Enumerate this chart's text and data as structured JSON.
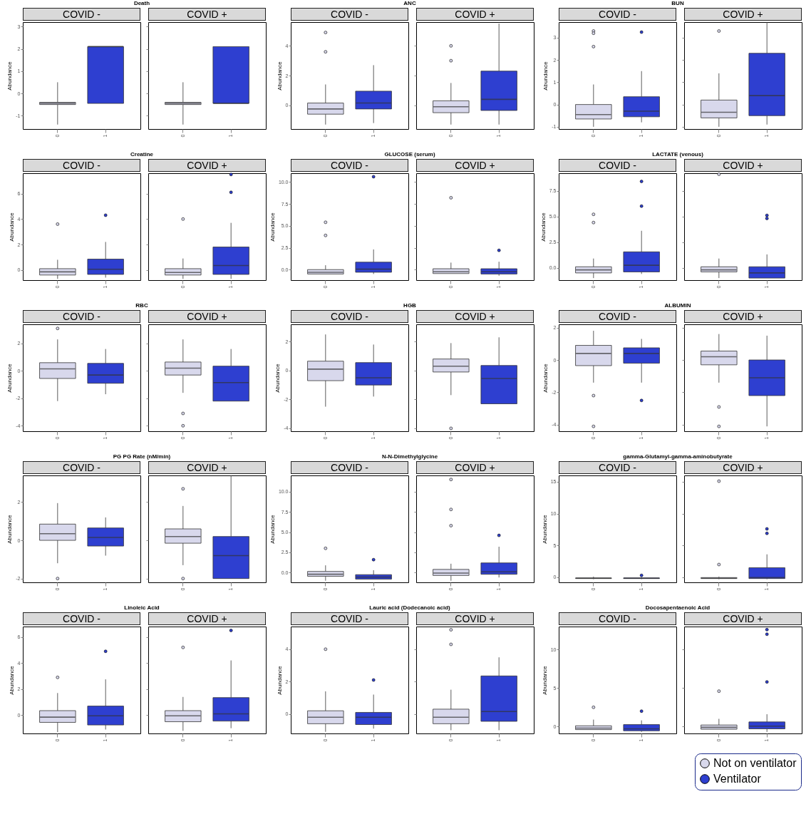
{
  "chart_data": [
    {
      "type": "box",
      "title": "Death",
      "subtitle": "COVID -",
      "ylabel": "Abundance",
      "categories": [
        "0",
        "1"
      ],
      "ylim": [
        -1.6,
        3.2
      ],
      "yticks": [
        -1,
        0,
        1,
        2,
        3
      ],
      "series": [
        {
          "color": "#d8d8ec",
          "boxes": [
            {
              "low": -1.4,
              "q1": -0.5,
              "median": -0.45,
              "q3": -0.4,
              "high": 0.5
            },
            null
          ]
        },
        {
          "color": "#2e3fd0",
          "boxes": [
            null,
            {
              "low": -0.45,
              "q1": -0.45,
              "median": 2.1,
              "q3": 2.1,
              "high": 2.1
            }
          ]
        }
      ]
    },
    {
      "type": "box",
      "subtitle": "COVID +",
      "categories": [
        "0",
        "1"
      ],
      "ylim": [
        -1.6,
        3.2
      ],
      "yticks": [
        {
          "value": -1,
          "label": null
        },
        {
          "value": 0,
          "label": null
        },
        {
          "value": 1,
          "label": null
        },
        {
          "value": 2,
          "label": null
        },
        {
          "value": 3,
          "label": null
        }
      ],
      "tick_labels": "x",
      "series": [
        {
          "color": "#d8d8ec",
          "boxes": [
            {
              "low": -1.4,
              "q1": -0.5,
              "median": -0.45,
              "q3": -0.4,
              "high": 0.5
            },
            null
          ]
        },
        {
          "color": "#2e3fd0",
          "boxes": [
            null,
            {
              "low": -0.45,
              "q1": -0.45,
              "median": -0.45,
              "q3": 2.1,
              "high": 2.1
            }
          ]
        }
      ]
    },
    {
      "type": "box",
      "title": "ANC",
      "subtitle": "COVID -",
      "ylabel": "Abundance",
      "categories": [
        "0",
        "1"
      ],
      "ylim": [
        -1.6,
        5.6
      ],
      "yticks": [
        0,
        2,
        4
      ],
      "series": [
        {
          "color": "#d8d8ec",
          "boxes": [
            {
              "low": -1.3,
              "q1": -0.6,
              "median": -0.25,
              "q3": 0.15,
              "high": 1.4,
              "outliers": [
                4.9,
                3.6
              ]
            },
            null
          ]
        },
        {
          "color": "#2e3fd0",
          "boxes": [
            null,
            {
              "low": -1.2,
              "q1": -0.25,
              "median": 0.15,
              "q3": 0.95,
              "high": 2.7
            }
          ]
        }
      ]
    },
    {
      "type": "box",
      "subtitle": "COVID +",
      "categories": [
        "0",
        "1"
      ],
      "ylim": [
        -1.6,
        5.6
      ],
      "yticks": [
        {
          "value": 0,
          "label": null
        },
        {
          "value": 2,
          "label": null
        },
        {
          "value": 4,
          "label": null
        }
      ],
      "tick_labels": "x",
      "series": [
        {
          "color": "#d8d8ec",
          "boxes": [
            {
              "low": -1.3,
              "q1": -0.5,
              "median": -0.1,
              "q3": 0.3,
              "high": 1.5,
              "outliers": [
                4.0,
                3.0
              ]
            },
            null
          ]
        },
        {
          "color": "#2e3fd0",
          "boxes": [
            null,
            {
              "low": -1.3,
              "q1": -0.35,
              "median": 0.4,
              "q3": 2.3,
              "high": 5.5
            }
          ]
        }
      ]
    },
    {
      "type": "box",
      "title": "BUN",
      "subtitle": "COVID -",
      "ylabel": "Abundance",
      "categories": [
        "0",
        "1"
      ],
      "ylim": [
        -1.1,
        3.7
      ],
      "yticks": [
        -1,
        0,
        1,
        2,
        3
      ],
      "series": [
        {
          "color": "#d8d8ec",
          "boxes": [
            {
              "low": -1,
              "q1": -0.65,
              "median": -0.45,
              "q3": 0,
              "high": 0.9,
              "outliers": [
                3.3,
                3.2,
                2.6
              ]
            },
            null
          ]
        },
        {
          "color": "#2e3fd0",
          "boxes": [
            null,
            {
              "low": -0.8,
              "q1": -0.55,
              "median": -0.3,
              "q3": 0.35,
              "high": 1.5,
              "outliers": [
                3.25
              ]
            }
          ]
        }
      ]
    },
    {
      "type": "box",
      "subtitle": "COVID +",
      "categories": [
        "0",
        "1"
      ],
      "ylim": [
        -1.1,
        3.7
      ],
      "yticks": [
        {
          "value": -1,
          "label": null
        },
        {
          "value": 0,
          "label": null
        },
        {
          "value": 1,
          "label": null
        },
        {
          "value": 2,
          "label": null
        },
        {
          "value": 3,
          "label": null
        }
      ],
      "tick_labels": "x",
      "series": [
        {
          "color": "#d8d8ec",
          "boxes": [
            {
              "low": -1,
              "q1": -0.6,
              "median": -0.35,
              "q3": 0.2,
              "high": 1.4,
              "outliers": [
                3.3
              ]
            },
            null
          ]
        },
        {
          "color": "#2e3fd0",
          "boxes": [
            null,
            {
              "low": -0.9,
              "q1": -0.5,
              "median": 0.4,
              "q3": 2.3,
              "high": 3.7
            }
          ]
        }
      ]
    },
    {
      "type": "box",
      "title": "Creatine",
      "subtitle": "COVID -",
      "ylabel": "Abundance",
      "categories": [
        "0",
        "1"
      ],
      "ylim": [
        -0.8,
        7.6
      ],
      "yticks": [
        0,
        2,
        4,
        6
      ],
      "series": [
        {
          "color": "#d8d8ec",
          "boxes": [
            {
              "low": -0.7,
              "q1": -0.4,
              "median": -0.15,
              "q3": 0.1,
              "high": 0.8,
              "outliers": [
                3.6
              ]
            },
            null
          ]
        },
        {
          "color": "#2e3fd0",
          "boxes": [
            null,
            {
              "low": -0.6,
              "q1": -0.35,
              "median": 0.05,
              "q3": 0.85,
              "high": 2.2,
              "outliers": [
                4.3
              ]
            }
          ]
        }
      ]
    },
    {
      "type": "box",
      "subtitle": "COVID +",
      "categories": [
        "0",
        "1"
      ],
      "ylim": [
        -0.8,
        7.6
      ],
      "yticks": [
        {
          "value": 0,
          "label": null
        },
        {
          "value": 2,
          "label": null
        },
        {
          "value": 4,
          "label": null
        },
        {
          "value": 6,
          "label": null
        }
      ],
      "tick_labels": "x",
      "series": [
        {
          "color": "#d8d8ec",
          "boxes": [
            {
              "low": -0.7,
              "q1": -0.4,
              "median": -0.2,
              "q3": 0.1,
              "high": 0.9,
              "outliers": [
                4.0
              ]
            },
            null
          ]
        },
        {
          "color": "#2e3fd0",
          "boxes": [
            null,
            {
              "low": -0.7,
              "q1": -0.35,
              "median": 0.35,
              "q3": 1.8,
              "high": 3.7,
              "outliers": [
                7.5,
                6.1
              ]
            }
          ]
        }
      ]
    },
    {
      "type": "box",
      "title": "GLUCOSE (serum)",
      "subtitle": "COVID -",
      "ylabel": "Abundance",
      "categories": [
        "0",
        "1"
      ],
      "ylim": [
        -1.2,
        11
      ],
      "yticks": [
        {
          "value": 0,
          "label": "0.0"
        },
        {
          "value": 2.5,
          "label": "2.5"
        },
        {
          "value": 5,
          "label": "5.0"
        },
        {
          "value": 7.5,
          "label": "7.5"
        },
        {
          "value": 10,
          "label": "10.0"
        }
      ],
      "series": [
        {
          "color": "#d8d8ec",
          "boxes": [
            {
              "low": -0.5,
              "q1": -0.5,
              "median": -0.3,
              "q3": 0,
              "high": 0.5,
              "outliers": [
                5.4,
                3.9
              ]
            },
            null
          ]
        },
        {
          "color": "#2e3fd0",
          "boxes": [
            null,
            {
              "low": -0.5,
              "q1": -0.3,
              "median": 0.05,
              "q3": 0.85,
              "high": 2.3,
              "outliers": [
                10.6
              ]
            }
          ]
        }
      ]
    },
    {
      "type": "box",
      "subtitle": "COVID +",
      "categories": [
        "0",
        "1"
      ],
      "ylim": [
        -1.2,
        11
      ],
      "yticks": [
        {
          "value": 0,
          "label": null
        },
        {
          "value": 2.5,
          "label": null
        },
        {
          "value": 5,
          "label": null
        },
        {
          "value": 7.5,
          "label": null
        },
        {
          "value": 10,
          "label": null
        }
      ],
      "tick_labels": "x",
      "series": [
        {
          "color": "#d8d8ec",
          "boxes": [
            {
              "low": -0.45,
              "q1": -0.45,
              "median": -0.25,
              "q3": 0.1,
              "high": 0.8,
              "outliers": [
                8.2
              ]
            },
            null
          ]
        },
        {
          "color": "#2e3fd0",
          "boxes": [
            null,
            {
              "low": -0.7,
              "q1": -0.5,
              "median": -0.25,
              "q3": 0.1,
              "high": 0.9,
              "outliers": [
                2.2
              ]
            }
          ]
        }
      ]
    },
    {
      "type": "box",
      "title": "LACTATE (venous)",
      "subtitle": "COVID -",
      "ylabel": "Abundance",
      "categories": [
        "0",
        "1"
      ],
      "ylim": [
        -1.2,
        9.2
      ],
      "yticks": [
        {
          "value": 0,
          "label": "0.0"
        },
        {
          "value": 2.5,
          "label": "2.5"
        },
        {
          "value": 5,
          "label": "5.0"
        },
        {
          "value": 7.5,
          "label": "7.5"
        }
      ],
      "series": [
        {
          "color": "#d8d8ec",
          "boxes": [
            {
              "low": -1,
              "q1": -0.5,
              "median": -0.2,
              "q3": 0.1,
              "high": 0.9,
              "outliers": [
                5.2,
                4.4
              ]
            },
            null
          ]
        },
        {
          "color": "#2e3fd0",
          "boxes": [
            null,
            {
              "low": -0.6,
              "q1": -0.4,
              "median": 0.25,
              "q3": 1.55,
              "high": 3.6,
              "outliers": [
                8.4,
                6.0
              ]
            }
          ]
        }
      ]
    },
    {
      "type": "box",
      "subtitle": "COVID +",
      "categories": [
        "0",
        "1"
      ],
      "ylim": [
        -1.2,
        9.2
      ],
      "yticks": [
        {
          "value": 0,
          "label": null
        },
        {
          "value": 2.5,
          "label": null
        },
        {
          "value": 5,
          "label": null
        },
        {
          "value": 7.5,
          "label": null
        }
      ],
      "tick_labels": "x",
      "series": [
        {
          "color": "#d8d8ec",
          "boxes": [
            {
              "low": -1,
              "q1": -0.4,
              "median": -0.2,
              "q3": 0.1,
              "high": 0.9,
              "outliers": [
                9.1
              ]
            },
            null
          ]
        },
        {
          "color": "#2e3fd0",
          "boxes": [
            null,
            {
              "low": -1,
              "q1": -1,
              "median": -0.5,
              "q3": 0.1,
              "high": 1.3,
              "outliers": [
                5.1,
                4.8
              ]
            }
          ]
        }
      ]
    },
    {
      "type": "box",
      "title": "RBC",
      "subtitle": "COVID -",
      "ylabel": "Abundance",
      "categories": [
        "0",
        "1"
      ],
      "ylim": [
        -4.4,
        3.4
      ],
      "yticks": [
        -4,
        -2,
        0,
        2
      ],
      "series": [
        {
          "color": "#d8d8ec",
          "boxes": [
            {
              "low": -2.2,
              "q1": -0.55,
              "median": 0.15,
              "q3": 0.6,
              "high": 2.3,
              "outliers": [
                3.1
              ]
            },
            null
          ]
        },
        {
          "color": "#2e3fd0",
          "boxes": [
            null,
            {
              "low": -1.7,
              "q1": -0.9,
              "median": -0.3,
              "q3": 0.55,
              "high": 1.6
            }
          ]
        }
      ]
    },
    {
      "type": "box",
      "subtitle": "COVID +",
      "categories": [
        "0",
        "1"
      ],
      "ylim": [
        -4.4,
        3.4
      ],
      "yticks": [
        {
          "value": -4,
          "label": null
        },
        {
          "value": -2,
          "label": null
        },
        {
          "value": 0,
          "label": null
        },
        {
          "value": 2,
          "label": null
        }
      ],
      "tick_labels": "x",
      "series": [
        {
          "color": "#d8d8ec",
          "boxes": [
            {
              "low": -1.6,
              "q1": -0.3,
              "median": 0.2,
              "q3": 0.65,
              "high": 2.3,
              "outliers": [
                -4.0,
                -3.1
              ]
            },
            null
          ]
        },
        {
          "color": "#2e3fd0",
          "boxes": [
            null,
            {
              "low": -2.2,
              "q1": -2.2,
              "median": -0.85,
              "q3": 0.35,
              "high": 1.6
            }
          ]
        }
      ]
    },
    {
      "type": "box",
      "title": "HGB",
      "subtitle": "COVID -",
      "ylabel": "Abundance",
      "categories": [
        "0",
        "1"
      ],
      "ylim": [
        -4.2,
        3.2
      ],
      "yticks": [
        -4,
        -2,
        0,
        2
      ],
      "series": [
        {
          "color": "#d8d8ec",
          "boxes": [
            {
              "low": -2.5,
              "q1": -0.7,
              "median": 0.1,
              "q3": 0.65,
              "high": 2.5
            },
            null
          ]
        },
        {
          "color": "#2e3fd0",
          "boxes": [
            null,
            {
              "low": -1.8,
              "q1": -1.0,
              "median": -0.5,
              "q3": 0.55,
              "high": 1.8
            }
          ]
        }
      ]
    },
    {
      "type": "box",
      "subtitle": "COVID +",
      "categories": [
        "0",
        "1"
      ],
      "ylim": [
        -4.2,
        3.2
      ],
      "yticks": [
        {
          "value": -4,
          "label": null
        },
        {
          "value": -2,
          "label": null
        },
        {
          "value": 0,
          "label": null
        },
        {
          "value": 2,
          "label": null
        }
      ],
      "tick_labels": "x",
      "series": [
        {
          "color": "#d8d8ec",
          "boxes": [
            {
              "low": -1.7,
              "q1": -0.1,
              "median": 0.3,
              "q3": 0.8,
              "high": 1.9,
              "outliers": [
                -4.0
              ]
            },
            null
          ]
        },
        {
          "color": "#2e3fd0",
          "boxes": [
            null,
            {
              "low": -2.3,
              "q1": -2.3,
              "median": -0.55,
              "q3": 0.35,
              "high": 2.3
            }
          ]
        }
      ]
    },
    {
      "type": "box",
      "title": "ALBUMIN",
      "subtitle": "COVID -",
      "ylabel": "Abundance",
      "categories": [
        "0",
        "1"
      ],
      "ylim": [
        -4.4,
        2.2
      ],
      "yticks": [
        -4,
        -2,
        0,
        2
      ],
      "series": [
        {
          "color": "#d8d8ec",
          "boxes": [
            {
              "low": -1.4,
              "q1": -0.35,
              "median": 0.4,
              "q3": 0.9,
              "high": 1.8,
              "outliers": [
                -4.1,
                -2.2
              ]
            },
            null
          ]
        },
        {
          "color": "#2e3fd0",
          "boxes": [
            null,
            {
              "low": -1.4,
              "q1": -0.2,
              "median": 0.4,
              "q3": 0.75,
              "high": 1.3,
              "outliers": [
                -2.5
              ]
            }
          ]
        }
      ]
    },
    {
      "type": "box",
      "subtitle": "COVID +",
      "categories": [
        "0",
        "1"
      ],
      "ylim": [
        -4.4,
        2.2
      ],
      "yticks": [
        {
          "value": -4,
          "label": null
        },
        {
          "value": -2,
          "label": null
        },
        {
          "value": 0,
          "label": null
        },
        {
          "value": 2,
          "label": null
        }
      ],
      "tick_labels": "x",
      "series": [
        {
          "color": "#d8d8ec",
          "boxes": [
            {
              "low": -1.4,
              "q1": -0.3,
              "median": 0.2,
              "q3": 0.55,
              "high": 1.6,
              "outliers": [
                -4.1,
                -2.9
              ]
            },
            null
          ]
        },
        {
          "color": "#2e3fd0",
          "boxes": [
            null,
            {
              "low": -4.1,
              "q1": -2.2,
              "median": -1.1,
              "q3": 0,
              "high": 1.5
            }
          ]
        }
      ]
    },
    {
      "type": "box",
      "title": "PG PG Rate (nM/min)",
      "subtitle": "COVID -",
      "ylabel": "Abundance",
      "categories": [
        "0",
        "1"
      ],
      "ylim": [
        -2.2,
        3.4
      ],
      "yticks": [
        -2,
        0,
        2
      ],
      "series": [
        {
          "color": "#d8d8ec",
          "boxes": [
            {
              "low": -1.2,
              "q1": 0,
              "median": 0.35,
              "q3": 0.85,
              "high": 1.95,
              "outliers": [
                -2.0
              ]
            },
            null
          ]
        },
        {
          "color": "#2e3fd0",
          "boxes": [
            null,
            {
              "low": -0.8,
              "q1": -0.3,
              "median": 0.15,
              "q3": 0.65,
              "high": 1.2
            }
          ]
        }
      ]
    },
    {
      "type": "box",
      "subtitle": "COVID +",
      "categories": [
        "0",
        "1"
      ],
      "ylim": [
        -2.2,
        3.4
      ],
      "yticks": [
        {
          "value": -2,
          "label": null
        },
        {
          "value": 0,
          "label": null
        },
        {
          "value": 2,
          "label": null
        }
      ],
      "tick_labels": "x",
      "series": [
        {
          "color": "#d8d8ec",
          "boxes": [
            {
              "low": -1.3,
              "q1": -0.15,
              "median": 0.2,
              "q3": 0.6,
              "high": 1.8,
              "outliers": [
                -2.0,
                2.7
              ]
            },
            null
          ]
        },
        {
          "color": "#2e3fd0",
          "boxes": [
            null,
            {
              "low": -2.0,
              "q1": -2.0,
              "median": -0.8,
              "q3": 0.2,
              "high": 3.4
            }
          ]
        }
      ]
    },
    {
      "type": "box",
      "title": "N-N-Dimethylglycine",
      "subtitle": "COVID -",
      "ylabel": "Abundance",
      "categories": [
        "0",
        "1"
      ],
      "ylim": [
        -1.2,
        12
      ],
      "yticks": [
        {
          "value": 0,
          "label": "0.0"
        },
        {
          "value": 2.5,
          "label": "2.5"
        },
        {
          "value": 5,
          "label": "5.0"
        },
        {
          "value": 7.5,
          "label": "7.5"
        },
        {
          "value": 10,
          "label": "10.0"
        }
      ],
      "series": [
        {
          "color": "#d8d8ec",
          "boxes": [
            {
              "low": -1,
              "q1": -0.45,
              "median": -0.2,
              "q3": 0.15,
              "high": 0.9,
              "outliers": [
                3.0
              ]
            },
            null
          ]
        },
        {
          "color": "#2e3fd0",
          "boxes": [
            null,
            {
              "low": -0.8,
              "q1": -0.8,
              "median": -0.55,
              "q3": -0.25,
              "high": 0.3,
              "outliers": [
                1.6
              ]
            }
          ]
        }
      ]
    },
    {
      "type": "box",
      "subtitle": "COVID +",
      "categories": [
        "0",
        "1"
      ],
      "ylim": [
        -1.2,
        12
      ],
      "yticks": [
        {
          "value": 0,
          "label": null
        },
        {
          "value": 2.5,
          "label": null
        },
        {
          "value": 5,
          "label": null
        },
        {
          "value": 7.5,
          "label": null
        },
        {
          "value": 10,
          "label": null
        }
      ],
      "tick_labels": "x",
      "series": [
        {
          "color": "#d8d8ec",
          "boxes": [
            {
              "low": -1,
              "q1": -0.35,
              "median": -0.05,
              "q3": 0.4,
              "high": 1.1,
              "outliers": [
                11.5,
                7.8,
                5.8
              ]
            },
            null
          ]
        },
        {
          "color": "#2e3fd0",
          "boxes": [
            null,
            {
              "low": -0.6,
              "q1": -0.2,
              "median": 0.1,
              "q3": 1.2,
              "high": 3.2,
              "outliers": [
                4.6
              ]
            }
          ]
        }
      ]
    },
    {
      "type": "box",
      "title": "gamma-Glutamyl-gamma-aminobutyrate",
      "subtitle": "COVID -",
      "ylabel": "Abundance",
      "categories": [
        "0",
        "1"
      ],
      "ylim": [
        -0.8,
        16
      ],
      "yticks": [
        0,
        5,
        10,
        15
      ],
      "series": [
        {
          "color": "#d8d8ec",
          "boxes": [
            {
              "low": -0.3,
              "q1": -0.2,
              "median": -0.15,
              "q3": -0.1,
              "high": 0.1
            },
            null
          ]
        },
        {
          "color": "#2e3fd0",
          "boxes": [
            null,
            {
              "low": -0.3,
              "q1": -0.2,
              "median": -0.15,
              "q3": -0.1,
              "high": 0,
              "outliers": [
                0.3
              ]
            }
          ]
        }
      ]
    },
    {
      "type": "box",
      "subtitle": "COVID +",
      "categories": [
        "0",
        "1"
      ],
      "ylim": [
        -0.8,
        16
      ],
      "yticks": [
        {
          "value": 0,
          "label": null
        },
        {
          "value": 5,
          "label": null
        },
        {
          "value": 10,
          "label": null
        },
        {
          "value": 15,
          "label": null
        }
      ],
      "tick_labels": "x",
      "series": [
        {
          "color": "#d8d8ec",
          "boxes": [
            {
              "low": -0.3,
              "q1": -0.2,
              "median": -0.15,
              "q3": -0.05,
              "high": 0.1,
              "outliers": [
                15.1,
                2.0
              ]
            },
            null
          ]
        },
        {
          "color": "#2e3fd0",
          "boxes": [
            null,
            {
              "low": -0.3,
              "q1": -0.2,
              "median": -0.05,
              "q3": 1.5,
              "high": 3.6,
              "outliers": [
                7.6,
                6.9
              ]
            }
          ]
        }
      ]
    },
    {
      "type": "box",
      "title": "Linoleic Acid",
      "subtitle": "COVID -",
      "ylabel": "Abundance",
      "categories": [
        "0",
        "1"
      ],
      "ylim": [
        -1.4,
        6.8
      ],
      "yticks": [
        0,
        2,
        4,
        6
      ],
      "series": [
        {
          "color": "#d8d8ec",
          "boxes": [
            {
              "low": -1.3,
              "q1": -0.55,
              "median": -0.15,
              "q3": 0.35,
              "high": 1.7,
              "outliers": [
                2.9
              ]
            },
            null
          ]
        },
        {
          "color": "#2e3fd0",
          "boxes": [
            null,
            {
              "low": -1.1,
              "q1": -0.75,
              "median": -0.05,
              "q3": 0.7,
              "high": 2.75,
              "outliers": [
                4.9
              ]
            }
          ]
        }
      ]
    },
    {
      "type": "box",
      "subtitle": "COVID +",
      "categories": [
        "0",
        "1"
      ],
      "ylim": [
        -1.4,
        6.8
      ],
      "yticks": [
        {
          "value": 0,
          "label": null
        },
        {
          "value": 2,
          "label": null
        },
        {
          "value": 4,
          "label": null
        },
        {
          "value": 6,
          "label": null
        }
      ],
      "tick_labels": "x",
      "series": [
        {
          "color": "#d8d8ec",
          "boxes": [
            {
              "low": -1.2,
              "q1": -0.5,
              "median": -0.05,
              "q3": 0.35,
              "high": 1.4,
              "outliers": [
                5.2
              ]
            },
            null
          ]
        },
        {
          "color": "#2e3fd0",
          "boxes": [
            null,
            {
              "low": -1.0,
              "q1": -0.45,
              "median": 0.1,
              "q3": 1.35,
              "high": 4.2,
              "outliers": [
                6.5
              ]
            }
          ]
        }
      ]
    },
    {
      "type": "box",
      "title": "Lauric acid (Dodecanoic acid)",
      "subtitle": "COVID -",
      "ylabel": "Abundance",
      "categories": [
        "0",
        "1"
      ],
      "ylim": [
        -1.2,
        5.4
      ],
      "yticks": [
        0,
        2,
        4
      ],
      "series": [
        {
          "color": "#d8d8ec",
          "boxes": [
            {
              "low": -1.1,
              "q1": -0.6,
              "median": -0.2,
              "q3": 0.2,
              "high": 1.4,
              "outliers": [
                4.0
              ]
            },
            null
          ]
        },
        {
          "color": "#2e3fd0",
          "boxes": [
            null,
            {
              "low": -0.9,
              "q1": -0.65,
              "median": -0.2,
              "q3": 0.1,
              "high": 1.2,
              "outliers": [
                2.1
              ]
            }
          ]
        }
      ]
    },
    {
      "type": "box",
      "subtitle": "COVID +",
      "categories": [
        "0",
        "1"
      ],
      "ylim": [
        -1.2,
        5.4
      ],
      "yticks": [
        {
          "value": 0,
          "label": null
        },
        {
          "value": 2,
          "label": null
        },
        {
          "value": 4,
          "label": null
        }
      ],
      "tick_labels": "x",
      "series": [
        {
          "color": "#d8d8ec",
          "boxes": [
            {
              "low": -1,
              "q1": -0.6,
              "median": -0.2,
              "q3": 0.3,
              "high": 1.5,
              "outliers": [
                5.2,
                4.3
              ]
            },
            null
          ]
        },
        {
          "color": "#2e3fd0",
          "boxes": [
            null,
            {
              "low": -1.0,
              "q1": -0.45,
              "median": 0.15,
              "q3": 2.35,
              "high": 3.5
            }
          ]
        }
      ]
    },
    {
      "type": "box",
      "title": "Docosapentaenoic Acid",
      "subtitle": "COVID -",
      "ylabel": "Abundance",
      "categories": [
        "0",
        "1"
      ],
      "ylim": [
        -0.9,
        13
      ],
      "yticks": [
        0,
        5,
        10
      ],
      "series": [
        {
          "color": "#d8d8ec",
          "boxes": [
            {
              "low": -0.4,
              "q1": -0.4,
              "median": -0.2,
              "q3": 0.1,
              "high": 0.9,
              "outliers": [
                2.5
              ]
            },
            null
          ]
        },
        {
          "color": "#2e3fd0",
          "boxes": [
            null,
            {
              "low": -0.7,
              "q1": -0.55,
              "median": -0.3,
              "q3": 0.25,
              "high": 0.8,
              "outliers": [
                2.0
              ]
            }
          ]
        }
      ]
    },
    {
      "type": "box",
      "subtitle": "COVID +",
      "categories": [
        "0",
        "1"
      ],
      "ylim": [
        -0.9,
        13
      ],
      "yticks": [
        {
          "value": 0,
          "label": null
        },
        {
          "value": 5,
          "label": null
        },
        {
          "value": 10,
          "label": null
        }
      ],
      "tick_labels": "x",
      "legend": "bottom right",
      "series": [
        {
          "name": "Not on ventilator",
          "color": "#d8d8ec",
          "boxes": [
            {
              "low": -0.35,
              "q1": -0.35,
              "median": -0.1,
              "q3": 0.2,
              "high": 1.0,
              "outliers": [
                4.6
              ]
            },
            null
          ]
        },
        {
          "name": "Ventilator",
          "color": "#2e3fd0",
          "boxes": [
            null,
            {
              "low": -0.7,
              "q1": -0.3,
              "median": 0.05,
              "q3": 0.6,
              "high": 1.6,
              "outliers": [
                12.6,
                12.0,
                5.8
              ]
            }
          ]
        }
      ]
    }
  ]
}
